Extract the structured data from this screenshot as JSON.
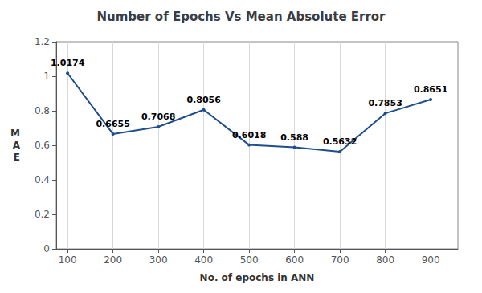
{
  "chart_data": {
    "type": "line",
    "title": "Number of Epochs Vs Mean Absolute Error",
    "xlabel": "No. of epochs in ANN",
    "ylabel": "M\nA\nE",
    "x": [
      100,
      200,
      300,
      400,
      500,
      600,
      700,
      800,
      900
    ],
    "values": [
      1.0174,
      0.6655,
      0.7068,
      0.8056,
      0.6018,
      0.588,
      0.5632,
      0.7853,
      0.8651
    ],
    "color": "#1f4e8c",
    "xlim": [
      75,
      960
    ],
    "xticks": [
      100,
      200,
      300,
      400,
      500,
      600,
      700,
      800,
      900
    ],
    "ylim": [
      0,
      1.2
    ],
    "yticks": [
      0,
      0.2,
      0.4,
      0.6,
      0.8,
      1,
      1.2
    ],
    "grid": "x",
    "data_labels": true
  }
}
